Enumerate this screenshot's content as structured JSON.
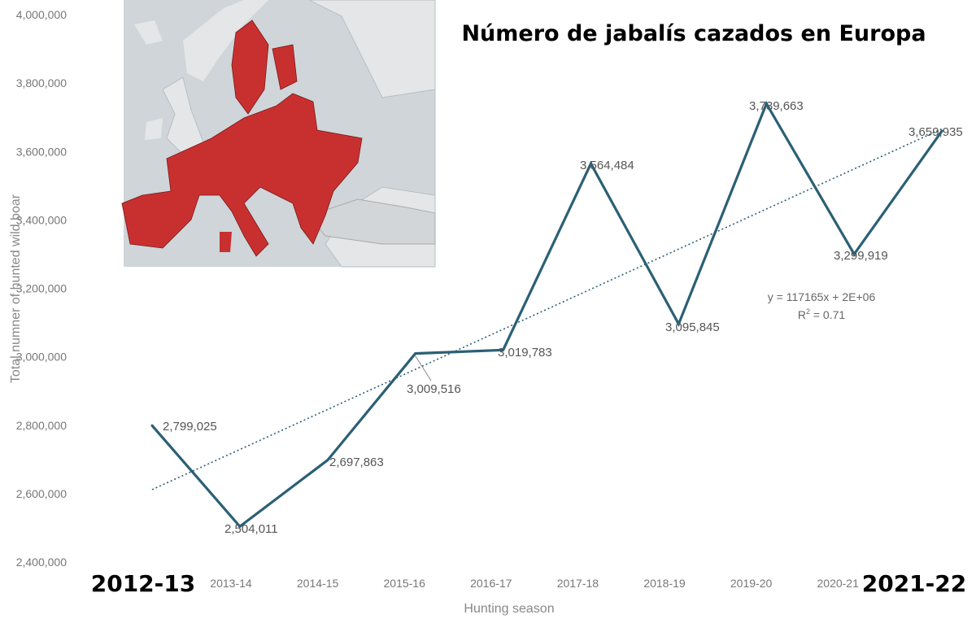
{
  "chart_data": {
    "type": "line",
    "title": "Número de jabalís cazados en Europa",
    "xlabel": "Hunting season",
    "ylabel": "Total numner of hunted wild boar",
    "categories": [
      "2012-13",
      "2013-14",
      "2014-15",
      "2015-16",
      "2016-17",
      "2017-18",
      "2018-19",
      "2019-20",
      "2020-21",
      "2021-22"
    ],
    "highlighted_categories": [
      "2012-13",
      "2021-22"
    ],
    "values": [
      2799025,
      2504011,
      2697863,
      3009516,
      3019783,
      3564484,
      3095845,
      3739663,
      3299919,
      3659935
    ],
    "data_labels": [
      "2,799,025",
      "2,504,011",
      "2,697,863",
      "3,009,516",
      "3,019,783",
      "3,564,484",
      "3,095,845",
      "3,739,663",
      "3,299,919",
      "3,659,935"
    ],
    "ylim": [
      2400000,
      4000000
    ],
    "yticks": [
      "2,400,000",
      "2,600,000",
      "2,800,000",
      "3,000,000",
      "3,200,000",
      "3,400,000",
      "3,600,000",
      "3,800,000",
      "4,000,000"
    ],
    "trendline": {
      "type": "linear",
      "style": "dotted",
      "equation": "y = 117165x + 2E+06",
      "r2_label": "R",
      "r2_value": "= 0.71"
    },
    "grid": false,
    "legend": "none",
    "colors": {
      "series": "#2b6075",
      "trend": "#2b6075",
      "eu_countries": "#c8302f",
      "land": "#e4e6e7",
      "sea": "#cfd5d9"
    },
    "inset": "map of Europe with EU countries highlighted in red"
  }
}
